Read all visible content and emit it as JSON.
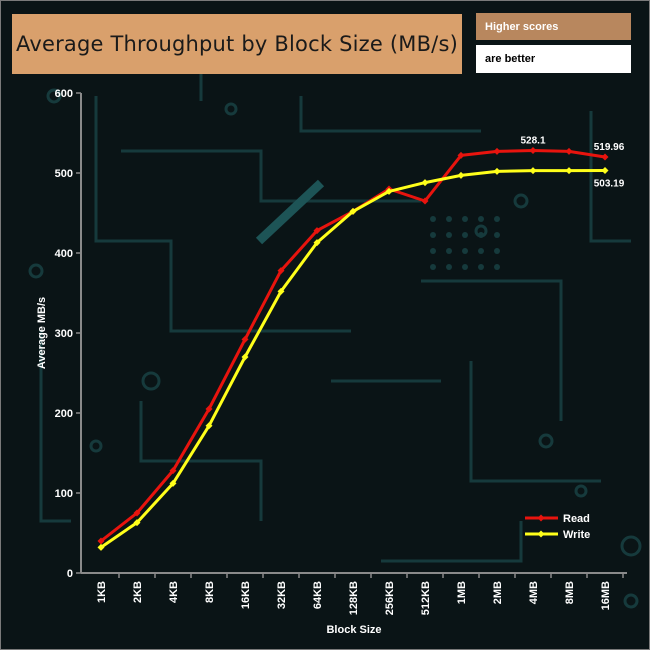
{
  "header": {
    "title": "Average Throughput by Block Size (MB/s)",
    "note_line1": "Higher scores",
    "note_line2": "are better"
  },
  "chart_data": {
    "type": "line",
    "title": "Average Throughput by Block Size (MB/s)",
    "xlabel": "Block Size",
    "ylabel": "Average MB/s",
    "ylim": [
      0,
      600
    ],
    "yticks": [
      0,
      100,
      200,
      300,
      400,
      500,
      600
    ],
    "grid": false,
    "legend_position": "bottom-right",
    "categories": [
      "1KB",
      "2KB",
      "4KB",
      "8KB",
      "16KB",
      "32KB",
      "64KB",
      "128KB",
      "256KB",
      "512KB",
      "1MB",
      "2MB",
      "4MB",
      "8MB",
      "16MB"
    ],
    "series": [
      {
        "name": "Read",
        "color": "#e8140e",
        "values": [
          40,
          75,
          128,
          205,
          292,
          378,
          428,
          452,
          480,
          465,
          522,
          527,
          528.1,
          527,
          519.96
        ]
      },
      {
        "name": "Write",
        "color": "#ffff1a",
        "values": [
          32,
          63,
          112,
          184,
          270,
          352,
          413,
          452,
          477,
          488,
          497,
          502,
          503,
          503,
          503.19
        ]
      }
    ],
    "annotations": [
      {
        "series": "Read",
        "category": "4MB",
        "text": "528.1"
      },
      {
        "series": "Read",
        "category": "16MB",
        "text": "519.96"
      },
      {
        "series": "Write",
        "category": "16MB",
        "text": "503.19"
      }
    ]
  }
}
